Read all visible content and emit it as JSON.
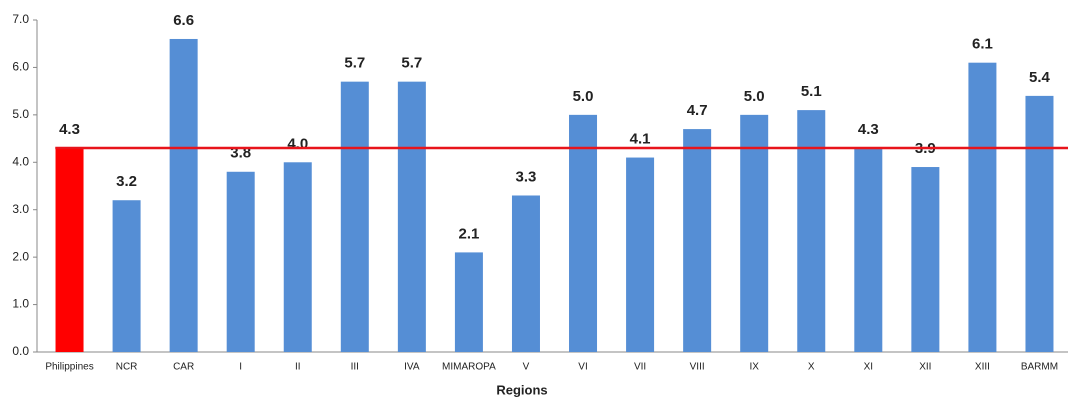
{
  "chart_data": {
    "type": "bar",
    "x_label": "Regions",
    "categories": [
      "Philippines",
      "NCR",
      "CAR",
      "I",
      "II",
      "III",
      "IVA",
      "MIMAROPA",
      "V",
      "VI",
      "VII",
      "VIII",
      "IX",
      "X",
      "XI",
      "XII",
      "XIII",
      "BARMM"
    ],
    "values": [
      4.3,
      3.2,
      6.6,
      3.8,
      4.0,
      5.7,
      5.7,
      2.1,
      3.3,
      5.0,
      4.1,
      4.7,
      5.0,
      5.1,
      4.3,
      3.9,
      6.1,
      5.4
    ],
    "value_labels": [
      "4.3",
      "3.2",
      "6.6",
      "3.8",
      "4.0",
      "5.7",
      "5.7",
      "2.1",
      "3.3",
      "5.0",
      "4.1",
      "4.7",
      "5.0",
      "5.1",
      "4.3",
      "3.9",
      "6.1",
      "5.4"
    ],
    "colors": [
      "#ff0000",
      "#558ed5",
      "#558ed5",
      "#558ed5",
      "#558ed5",
      "#558ed5",
      "#558ed5",
      "#558ed5",
      "#558ed5",
      "#558ed5",
      "#558ed5",
      "#558ed5",
      "#558ed5",
      "#558ed5",
      "#558ed5",
      "#558ed5",
      "#558ed5",
      "#558ed5"
    ],
    "reference_line": {
      "value": 4.3,
      "color": "#e8141b"
    },
    "ylim": [
      0,
      7
    ],
    "yticks": [
      {
        "value": 0,
        "label": "0.0"
      },
      {
        "value": 1,
        "label": "1.0"
      },
      {
        "value": 2,
        "label": "2.0"
      },
      {
        "value": 3,
        "label": "3.0"
      },
      {
        "value": 4,
        "label": "4.0"
      },
      {
        "value": 5,
        "label": "5.0"
      },
      {
        "value": 6,
        "label": "6.0"
      },
      {
        "value": 7,
        "label": "7.0"
      }
    ]
  }
}
